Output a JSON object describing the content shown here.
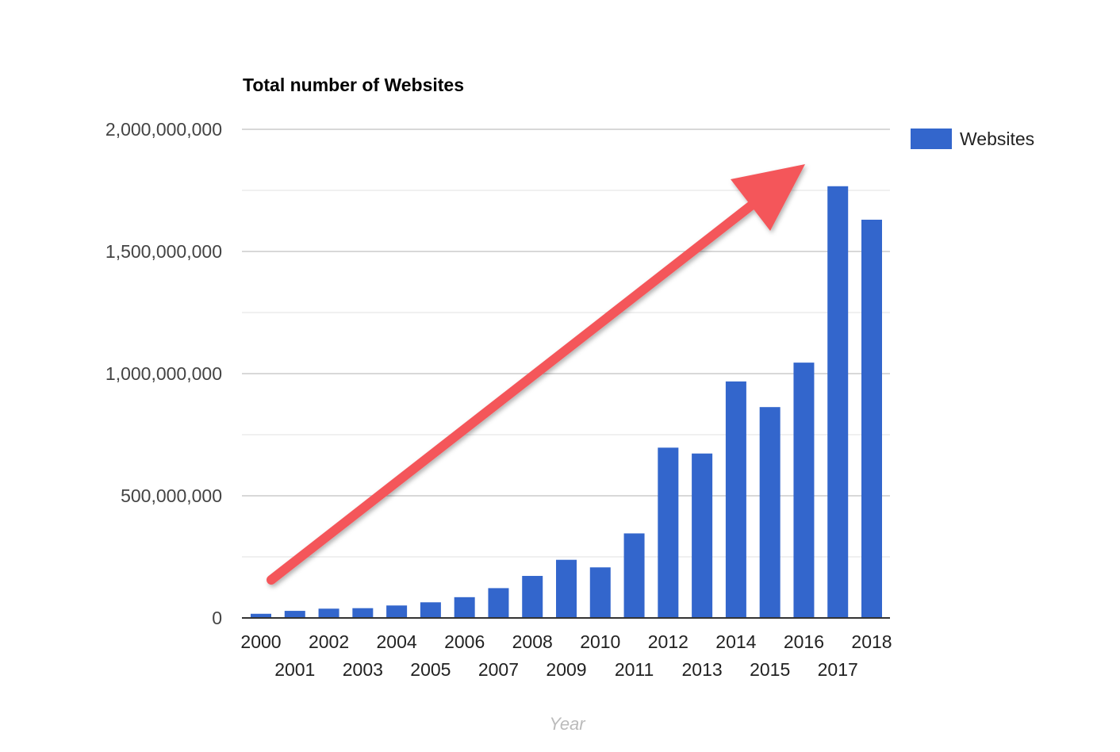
{
  "chart_data": {
    "type": "bar",
    "title": "Total number of Websites",
    "xlabel": "Year",
    "ylabel": "",
    "ylim": [
      0,
      2000000000
    ],
    "yticks": [
      "0",
      "500,000,000",
      "1,000,000,000",
      "1,500,000,000",
      "2,000,000,000"
    ],
    "ytick_values": [
      0,
      500000000,
      1000000000,
      1500000000,
      2000000000
    ],
    "minor_gridlines": true,
    "legend_position": "right",
    "categories": [
      "2000",
      "2001",
      "2002",
      "2003",
      "2004",
      "2005",
      "2006",
      "2007",
      "2008",
      "2009",
      "2010",
      "2011",
      "2012",
      "2013",
      "2014",
      "2015",
      "2016",
      "2017",
      "2018"
    ],
    "series": [
      {
        "name": "Websites",
        "color": "#3366cc",
        "values": [
          17000000,
          29000000,
          38000000,
          40000000,
          51000000,
          64000000,
          85000000,
          122000000,
          172000000,
          238000000,
          207000000,
          346000000,
          697000000,
          673000000,
          968000000,
          863000000,
          1045000000,
          1767000000,
          1630000000
        ]
      }
    ],
    "annotations": [
      {
        "type": "arrow",
        "color": "#f4575a",
        "meaning": "upward trend"
      }
    ]
  }
}
